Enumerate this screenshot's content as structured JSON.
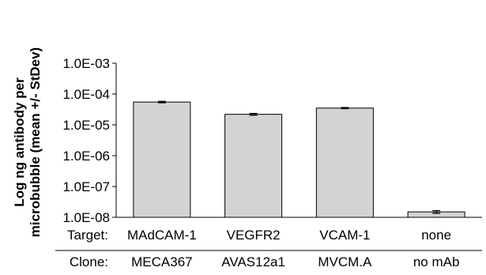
{
  "chart_data": {
    "type": "bar",
    "ylabel_line1": "Log ng antibody per",
    "ylabel_line2": "microbubble (mean +/- StDev)",
    "yscale": "log",
    "ylim": [
      1e-08,
      0.001
    ],
    "yticks": [
      "1.0E-03",
      "1.0E-04",
      "1.0E-05",
      "1.0E-06",
      "1.0E-07",
      "1.0E-08"
    ],
    "row_labels": [
      "Target:",
      "Clone:"
    ],
    "categories": [
      "MAdCAM-1",
      "VEGFR2",
      "VCAM-1",
      "none"
    ],
    "clones": [
      "MECA367",
      "AVAS12a1",
      "MVCM.A",
      "no mAb"
    ],
    "values": [
      5.5e-05,
      2.2e-05,
      3.5e-05,
      1.5e-08
    ],
    "errors": [
      3e-06,
      1.5e-06,
      1.5e-06,
      1.5e-09
    ],
    "grid": false,
    "bar_color": "#d3d3d3"
  }
}
